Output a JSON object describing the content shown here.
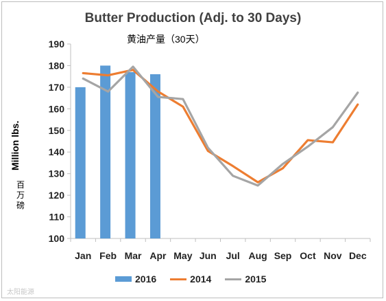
{
  "colors": {
    "bar_2016": "#5b9bd5",
    "line_2014": "#ed7d31",
    "line_2015": "#a5a5a5",
    "axis": "#bfbfbf"
  },
  "chart_data": {
    "type": "bar+line",
    "title": "Butter Production (Adj. to 30 Days)",
    "subtitle": "黄油产量（30天）",
    "ylabel": "Million lbs.",
    "ylabel_cn": "百万磅",
    "ylim": [
      100,
      190
    ],
    "yticks": [
      100,
      110,
      120,
      130,
      140,
      150,
      160,
      170,
      180,
      190
    ],
    "categories": [
      "Jan",
      "Feb",
      "Mar",
      "Apr",
      "May",
      "Jun",
      "Jul",
      "Aug",
      "Sep",
      "Oct",
      "Nov",
      "Dec"
    ],
    "grid": false,
    "legend": "bottom",
    "series": [
      {
        "name": "2016",
        "type": "bar",
        "values": [
          170,
          180,
          177,
          176,
          null,
          null,
          null,
          null,
          null,
          null,
          null,
          null
        ]
      },
      {
        "name": "2014",
        "type": "line",
        "values": [
          176.5,
          175.5,
          178,
          168,
          161,
          140.5,
          133.5,
          126,
          132.5,
          145.5,
          144.5,
          162
        ]
      },
      {
        "name": "2015",
        "type": "line",
        "values": [
          174,
          168,
          179.5,
          165.5,
          164.5,
          142,
          129,
          124.5,
          134.5,
          142.5,
          151.5,
          167.5
        ]
      }
    ]
  },
  "watermark": "太阳能源"
}
